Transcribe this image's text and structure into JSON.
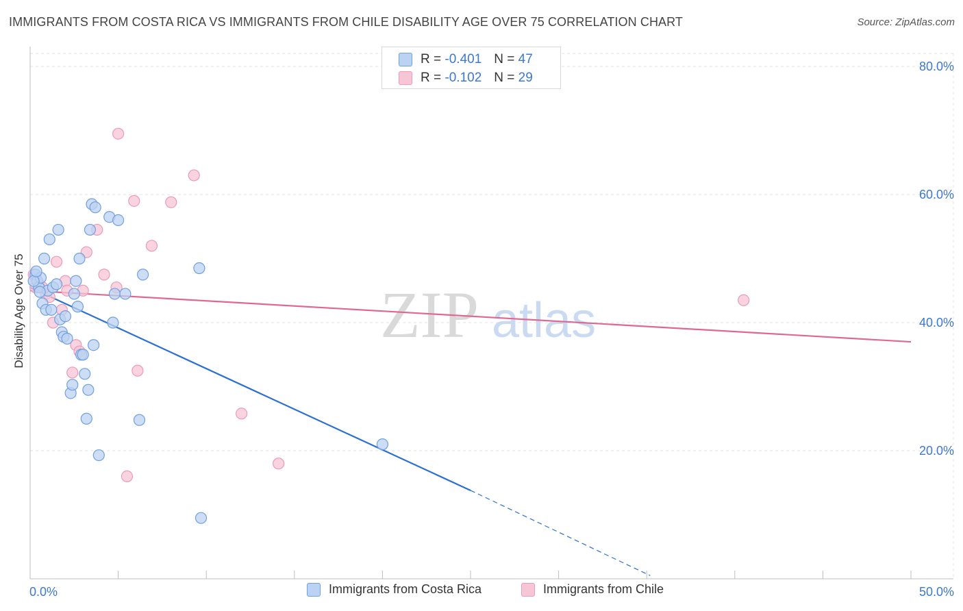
{
  "title": "IMMIGRANTS FROM COSTA RICA VS IMMIGRANTS FROM CHILE DISABILITY AGE OVER 75 CORRELATION CHART",
  "source": "Source: ZipAtlas.com",
  "watermark": {
    "zip": "ZIP",
    "atlas": "atlas"
  },
  "legend_top": {
    "rows": [
      {
        "r_label": "R =",
        "r_value": "-0.401",
        "n_label": "N =",
        "n_value": "47"
      },
      {
        "r_label": "R =",
        "r_value": "-0.102",
        "n_label": "N =",
        "n_value": "29"
      }
    ]
  },
  "legend_bottom": {
    "items": [
      {
        "label": "Immigrants from Costa Rica"
      },
      {
        "label": "Immigrants from Chile"
      }
    ]
  },
  "colors": {
    "blue_fill": "#bcd2f2",
    "blue_stroke": "#6fa0e0",
    "blue_line": "#2a6fd6",
    "pink_fill": "#f7c6d6",
    "pink_stroke": "#ec9ab5",
    "pink_line": "#e06890",
    "tick_text": "#3b78d0",
    "grid": "#e3e3e3"
  },
  "chart_data": {
    "type": "scatter",
    "title": "IMMIGRANTS FROM COSTA RICA VS IMMIGRANTS FROM CHILE DISABILITY AGE OVER 75 CORRELATION CHART",
    "xlabel": "",
    "ylabel": "Disability Age Over 75",
    "xlim": [
      0,
      50
    ],
    "ylim": [
      0,
      80
    ],
    "x_tick_labels": [
      {
        "value": 0,
        "label": "0.0%"
      },
      {
        "value": 50,
        "label": "50.0%"
      }
    ],
    "y_tick_labels": [
      {
        "value": 20,
        "label": "20.0%"
      },
      {
        "value": 40,
        "label": "40.0%"
      },
      {
        "value": 60,
        "label": "60.0%"
      },
      {
        "value": 80,
        "label": "80.0%"
      }
    ],
    "series": [
      {
        "name": "Immigrants from Costa Rica",
        "color": "blue",
        "R": -0.401,
        "N": 47,
        "trend": {
          "x0": 0,
          "y0": 45.5,
          "x1": 25,
          "y1": 13.8,
          "dash_to_x": 35.2,
          "dash_to_y": 0.5
        },
        "points": [
          [
            0.3,
            47.5
          ],
          [
            0.4,
            46.5
          ],
          [
            0.5,
            45.5
          ],
          [
            0.6,
            47.0
          ],
          [
            0.7,
            43.0
          ],
          [
            0.8,
            50.0
          ],
          [
            0.9,
            42.0
          ],
          [
            1.0,
            45.0
          ],
          [
            1.1,
            53.0
          ],
          [
            1.2,
            42.0
          ],
          [
            1.3,
            45.5
          ],
          [
            1.5,
            46.0
          ],
          [
            1.6,
            54.5
          ],
          [
            1.7,
            40.5
          ],
          [
            1.8,
            38.5
          ],
          [
            1.9,
            37.8
          ],
          [
            2.0,
            41.0
          ],
          [
            2.1,
            37.5
          ],
          [
            2.3,
            29.0
          ],
          [
            2.4,
            30.3
          ],
          [
            2.5,
            44.5
          ],
          [
            2.6,
            46.5
          ],
          [
            2.7,
            42.5
          ],
          [
            2.8,
            50.0
          ],
          [
            2.9,
            35.0
          ],
          [
            3.0,
            35.0
          ],
          [
            3.1,
            32.0
          ],
          [
            3.2,
            25.0
          ],
          [
            3.3,
            29.5
          ],
          [
            3.4,
            54.5
          ],
          [
            3.5,
            58.5
          ],
          [
            3.6,
            36.5
          ],
          [
            3.7,
            58.0
          ],
          [
            3.9,
            19.3
          ],
          [
            4.5,
            56.5
          ],
          [
            4.7,
            40.0
          ],
          [
            4.8,
            44.5
          ],
          [
            5.0,
            56.0
          ],
          [
            5.4,
            44.5
          ],
          [
            6.2,
            24.8
          ],
          [
            6.4,
            47.5
          ],
          [
            9.6,
            48.5
          ],
          [
            9.7,
            9.5
          ],
          [
            20.0,
            21.0
          ],
          [
            0.2,
            46.5
          ],
          [
            0.35,
            48.0
          ],
          [
            0.55,
            44.8
          ]
        ]
      },
      {
        "name": "Immigrants from Chile",
        "color": "pink",
        "R": -0.102,
        "N": 29,
        "trend": {
          "x0": 0,
          "y0": 45.0,
          "x1": 50,
          "y1": 37.0
        },
        "points": [
          [
            0.2,
            47.5
          ],
          [
            0.3,
            45.5
          ],
          [
            0.5,
            46.0
          ],
          [
            0.7,
            45.5
          ],
          [
            0.9,
            44.5
          ],
          [
            1.1,
            44.0
          ],
          [
            1.3,
            40.0
          ],
          [
            1.5,
            49.5
          ],
          [
            1.8,
            42.0
          ],
          [
            2.0,
            46.5
          ],
          [
            2.1,
            45.0
          ],
          [
            2.4,
            32.2
          ],
          [
            2.6,
            36.5
          ],
          [
            2.8,
            35.5
          ],
          [
            3.0,
            45.0
          ],
          [
            3.2,
            51.0
          ],
          [
            3.8,
            54.5
          ],
          [
            4.2,
            47.5
          ],
          [
            4.9,
            45.5
          ],
          [
            5.0,
            69.5
          ],
          [
            5.5,
            16.0
          ],
          [
            5.9,
            59.0
          ],
          [
            6.1,
            32.5
          ],
          [
            6.9,
            52.0
          ],
          [
            8.0,
            58.8
          ],
          [
            9.3,
            63.0
          ],
          [
            12.0,
            25.8
          ],
          [
            14.1,
            18.0
          ],
          [
            40.5,
            43.5
          ]
        ]
      }
    ]
  }
}
